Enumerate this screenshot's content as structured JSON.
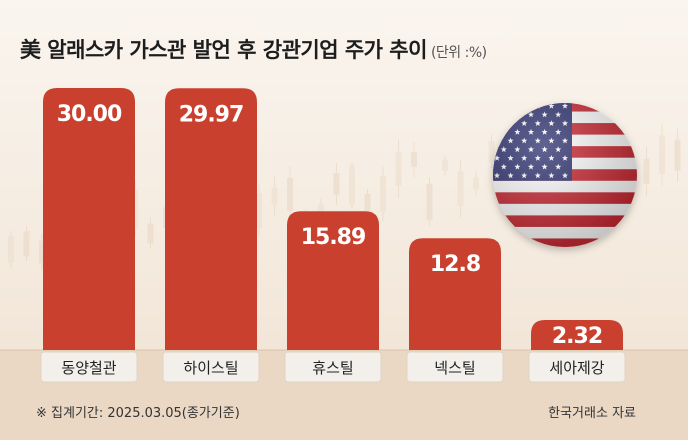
{
  "title": "美 알래스카 가스관 발언 후 강관기업 주가 추이",
  "unit": "(단위 :%)",
  "footnote": "※ 집계기간: 2025.03.05(종가기준)",
  "source": "한국거래소 자료",
  "colors": {
    "bar": "#c9402e",
    "label_box": "#f3f0ec",
    "background": "#f6eee4",
    "baseline_band": "#e9d6c0"
  },
  "chart_data": {
    "type": "bar",
    "categories": [
      "동양철관",
      "하이스틸",
      "휴스틸",
      "넥스틸",
      "세아제강"
    ],
    "values": [
      30.0,
      29.97,
      15.89,
      12.8,
      2.32
    ],
    "value_labels": [
      "30.00",
      "29.97",
      "15.89",
      "12.8",
      "2.32"
    ],
    "ylim": [
      0,
      30
    ],
    "grid": false,
    "axes_visible": false
  },
  "decoration": {
    "flag_icon": "us-flag-icon"
  }
}
